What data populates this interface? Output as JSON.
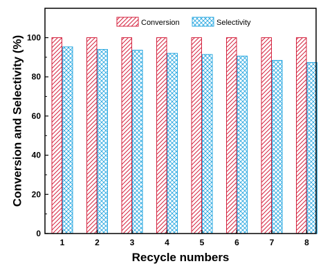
{
  "chart_data": {
    "type": "bar",
    "categories": [
      "1",
      "2",
      "3",
      "4",
      "5",
      "6",
      "7",
      "8"
    ],
    "series": [
      {
        "name": "Conversion",
        "values": [
          100,
          100,
          100,
          100,
          100,
          100,
          100,
          100
        ],
        "color": "#d4213d",
        "pattern": "diagonal-hatch"
      },
      {
        "name": "Selectivity",
        "values": [
          95.3,
          94.0,
          93.6,
          92.0,
          91.4,
          90.6,
          88.4,
          87.3
        ],
        "color": "#2aa8e0",
        "pattern": "cross-hatch"
      }
    ],
    "xlabel": "Recycle numbers",
    "ylabel": "Conversion and Selectivity (%)",
    "ylim": [
      0,
      115
    ],
    "yticks": [
      0,
      20,
      40,
      60,
      80,
      100
    ],
    "grid": false,
    "legend_position": "top-center"
  }
}
